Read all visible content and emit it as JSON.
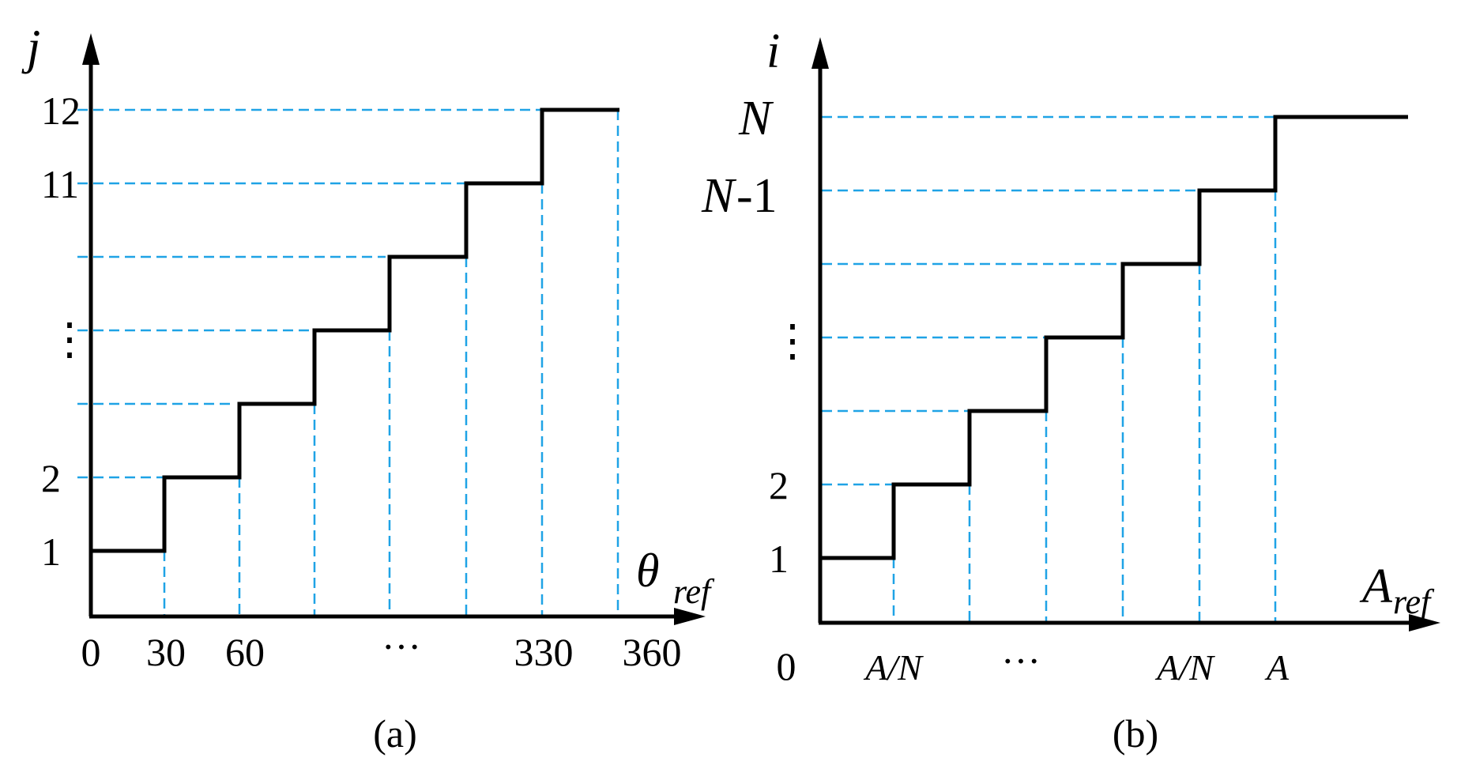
{
  "panel_a": {
    "y_axis_label": "j",
    "x_axis_label_main": "θ",
    "x_axis_label_sub": "ref",
    "y_ticks": [
      "12",
      "11",
      "⋮",
      "2",
      "1"
    ],
    "x_ticks": [
      "0",
      "30",
      "60",
      "···",
      "330",
      "360"
    ],
    "caption": "(a)"
  },
  "panel_b": {
    "y_axis_label": "i",
    "x_axis_label_main": "A",
    "x_axis_label_sub": "ref",
    "y_tick_N": "N",
    "y_tick_N1_main": "N",
    "y_tick_N1_suffix": "-1",
    "y_ticks": [
      "⋮",
      "2",
      "1"
    ],
    "x_ticks": [
      "0",
      "A/N",
      "···",
      "A/N",
      "A"
    ],
    "caption": "(b)"
  },
  "colors": {
    "guide": "#1fa3e6",
    "step": "#000000"
  }
}
